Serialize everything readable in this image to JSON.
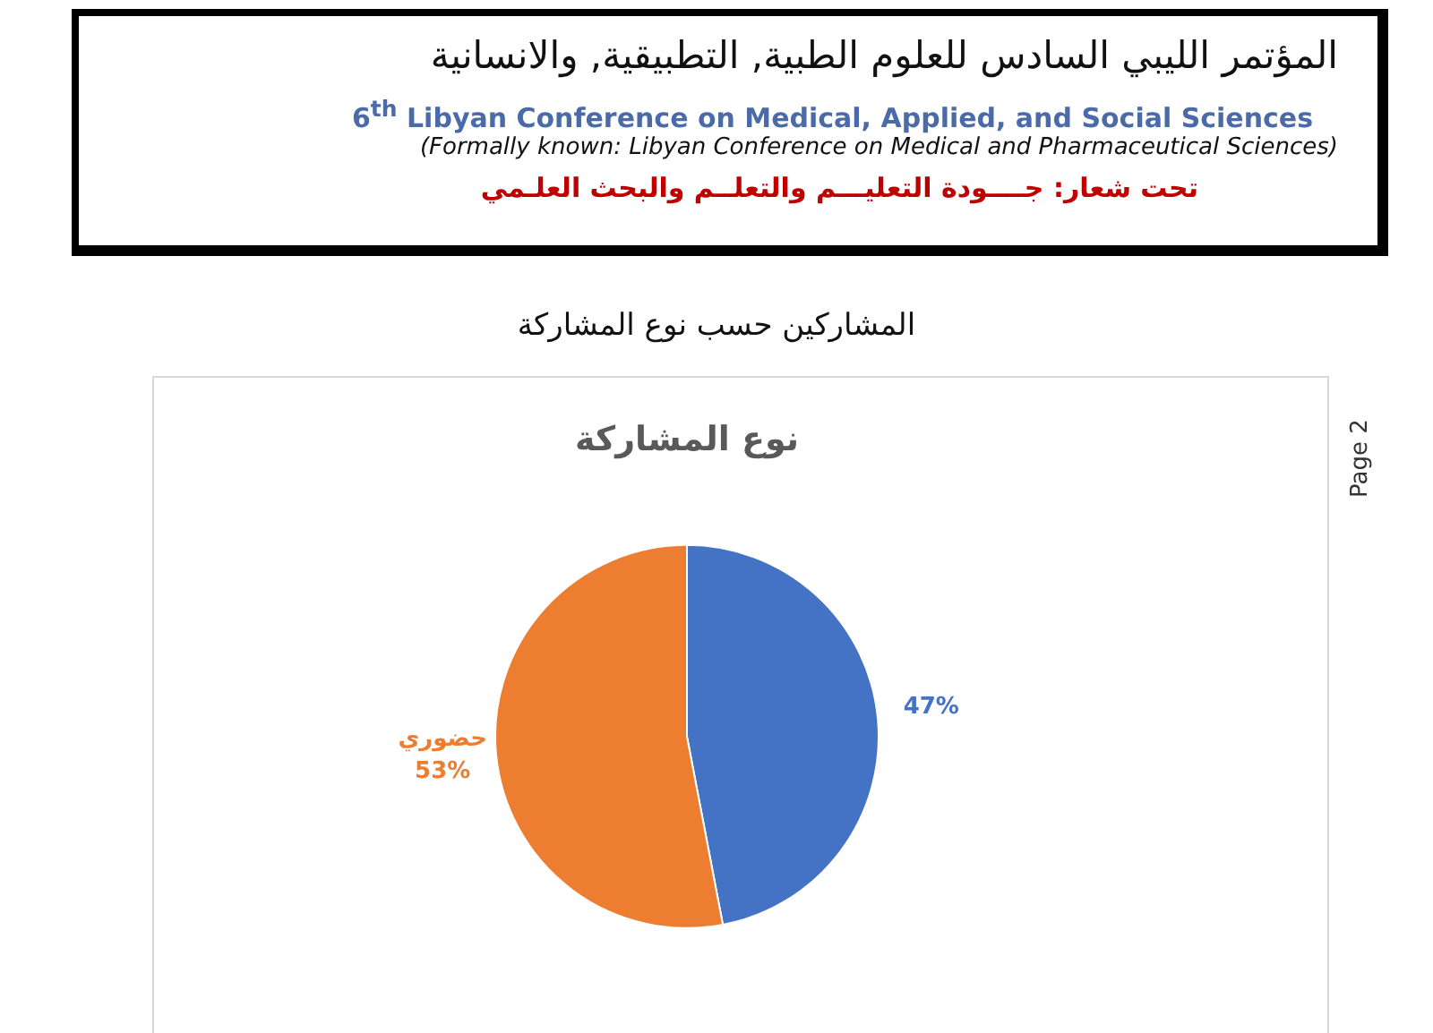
{
  "chart_data": {
    "type": "pie",
    "title": "نوع المشاركة",
    "categories": [
      null,
      "حضوري"
    ],
    "values": [
      47,
      53
    ],
    "colors": [
      "#4472c4",
      "#ed7d31"
    ],
    "value_labels": [
      "47%",
      "53%"
    ],
    "legend": false,
    "annotations": [
      "المؤتمر الليبي السادس للعلوم الطبية, التطبيقية, والانسانية",
      "6$^{th}$ Libyan Conference on Medical, Applied, and Social Sciences",
      "(Formally known: Libyan Conference on Medical and Pharmaceutical Sciences)",
      "تحت شعار: جــــودة التعليـــم والتعلــم والبحث العلـمي",
      "المشاركين حسب نوع المشاركة",
      "Page 2"
    ]
  }
}
